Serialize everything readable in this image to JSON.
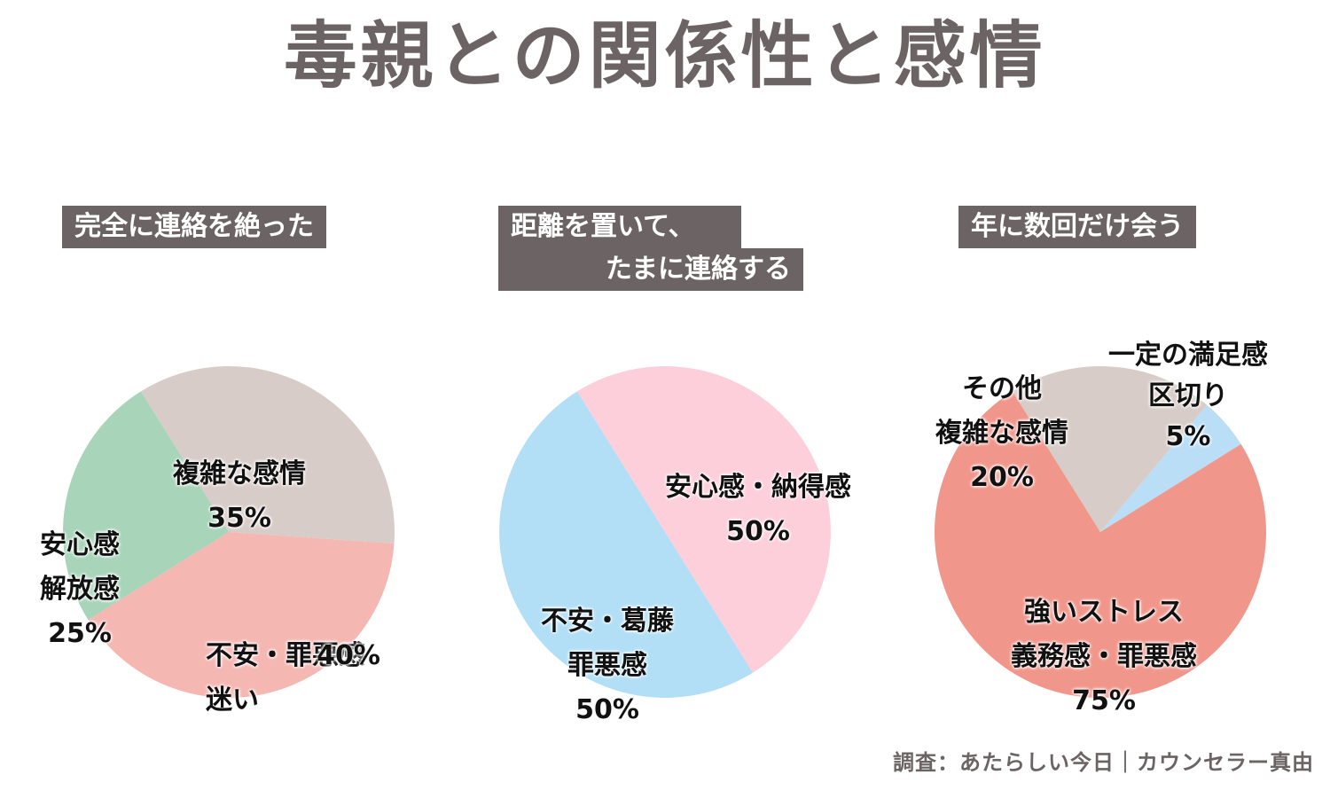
{
  "title": "毒親との関係性と感情",
  "source": "調査：あたらしい今日｜カウンセラー真由",
  "chart_data": [
    {
      "type": "pie",
      "title": "完全に連絡を絶った",
      "slices": [
        {
          "label": "複雑な感情",
          "value": 35,
          "display": "35%",
          "color": "#d8ccc8"
        },
        {
          "label": "不安・罪悪感\n迷い",
          "value": 40,
          "display": "40%",
          "color": "#f4b7b2"
        },
        {
          "label": "安心感\n解放感",
          "value": 25,
          "display": "25%",
          "color": "#a8d4b9"
        }
      ]
    },
    {
      "type": "pie",
      "title_lines": [
        "距離を置いて、",
        "たまに連絡する"
      ],
      "slices": [
        {
          "label": "安心感・納得感",
          "value": 50,
          "display": "50%",
          "color": "#fccfdb"
        },
        {
          "label": "不安・葛藤\n罪悪感",
          "value": 50,
          "display": "50%",
          "color": "#b2dff6"
        }
      ]
    },
    {
      "type": "pie",
      "title": "年に数回だけ会う",
      "slices": [
        {
          "label": "一定の満足感\n区切り",
          "value": 5,
          "display": "5%",
          "color": "#b9def6"
        },
        {
          "label": "強いストレス\n義務感・罪悪感",
          "value": 75,
          "display": "75%",
          "color": "#f0968b"
        },
        {
          "label": "その他\n複雑な感情",
          "value": 20,
          "display": "20%",
          "color": "#d8ccc8"
        }
      ]
    }
  ]
}
